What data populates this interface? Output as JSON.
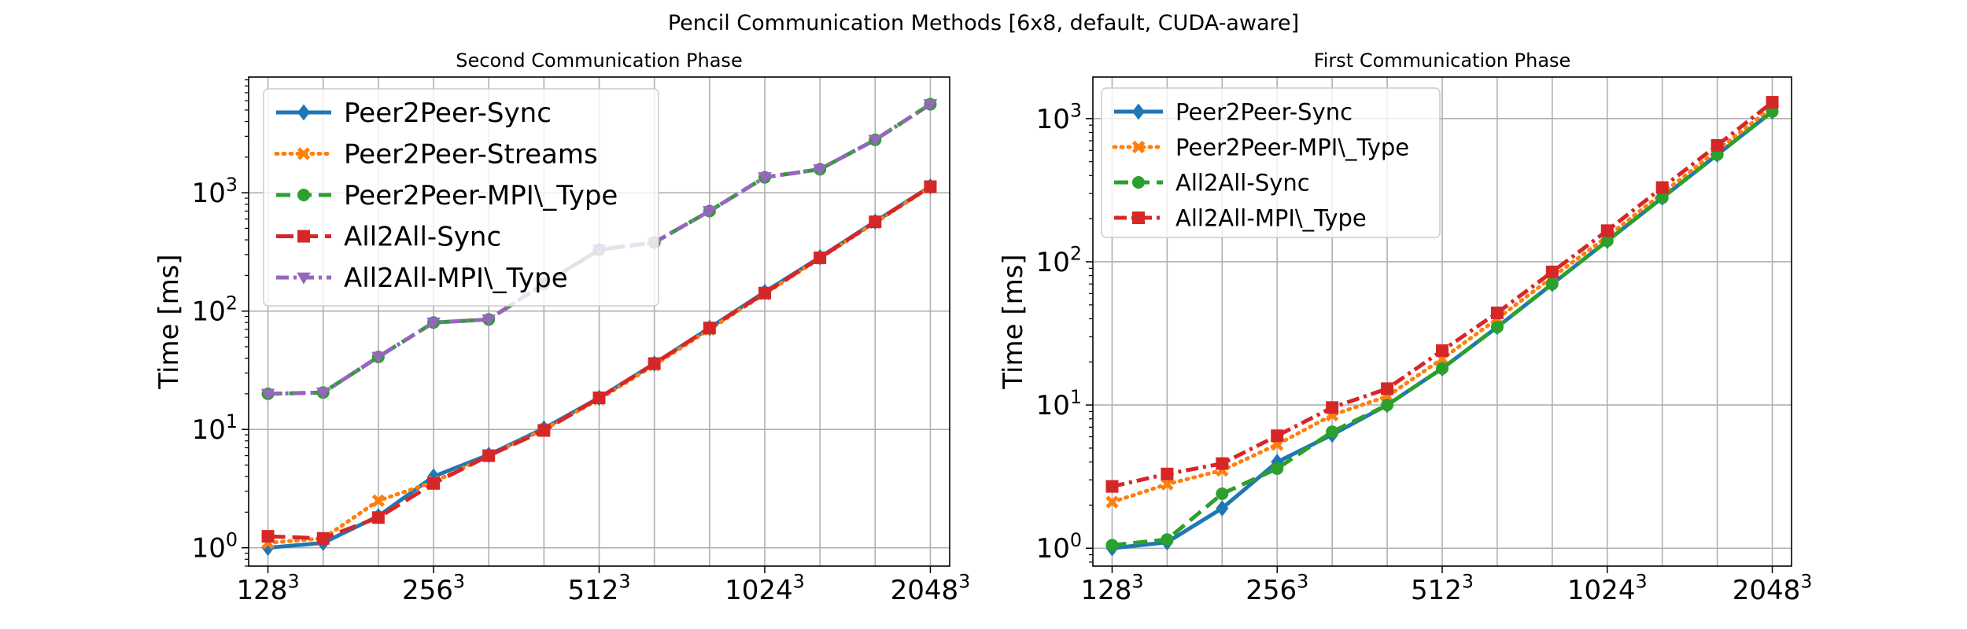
{
  "figure": {
    "suptitle": "Pencil Communication Methods [6x8, default, CUDA-aware]"
  },
  "colors": {
    "blue": "#1f77b4",
    "orange": "#ff7f0e",
    "green": "#2ca02c",
    "red": "#d62728",
    "purple": "#9467bd",
    "grid": "#b0b0b0"
  },
  "chart_data": [
    {
      "type": "line",
      "title": "Second Communication Phase",
      "ylabel": "Time [ms]",
      "xlabel": "",
      "yscale": "log",
      "grid": true,
      "legend_position": "upper-left",
      "xticks": [
        {
          "base": "128",
          "exp": "3",
          "x": 0
        },
        {
          "base": "256",
          "exp": "3",
          "x": 3
        },
        {
          "base": "512",
          "exp": "3",
          "x": 6
        },
        {
          "base": "1024",
          "exp": "3",
          "x": 9
        },
        {
          "base": "2048",
          "exp": "3",
          "x": 12
        }
      ],
      "yticks": [
        {
          "base": "10",
          "exp": "0",
          "value": 1
        },
        {
          "base": "10",
          "exp": "1",
          "value": 10
        },
        {
          "base": "10",
          "exp": "2",
          "value": 100
        },
        {
          "base": "10",
          "exp": "3",
          "value": 1000
        }
      ],
      "xlim": [
        -0.35,
        12.35
      ],
      "ylim": [
        0.7,
        9500
      ],
      "x": [
        0,
        1,
        2,
        3,
        4,
        5,
        6,
        7,
        8,
        9,
        10,
        11,
        12
      ],
      "series": [
        {
          "name": "Peer2Peer-Sync",
          "color": "#1f77b4",
          "dash": "solid",
          "marker": "diamond",
          "values": [
            1.0,
            1.1,
            1.85,
            4.0,
            6.1,
            10.2,
            18.5,
            36.0,
            72.0,
            145.0,
            285.0,
            570.0,
            1130.0
          ]
        },
        {
          "name": "Peer2Peer-Streams",
          "color": "#ff7f0e",
          "dash": "dotted",
          "marker": "x",
          "values": [
            1.1,
            1.2,
            2.5,
            3.6,
            6.0,
            10.0,
            18.0,
            35.0,
            70.0,
            140.0,
            280.0,
            560.0,
            1120.0
          ]
        },
        {
          "name": "Peer2Peer-MPI\\_Type",
          "color": "#2ca02c",
          "dash": "dashed",
          "marker": "circle",
          "values": [
            20.0,
            20.5,
            41.0,
            80.0,
            85.0,
            170.0,
            330.0,
            380.0,
            700.0,
            1350.0,
            1580.0,
            2800.0,
            5600.0
          ]
        },
        {
          "name": "All2All-Sync",
          "color": "#d62728",
          "dash": "longdash",
          "marker": "square",
          "values": [
            1.25,
            1.2,
            1.8,
            3.5,
            6.0,
            9.8,
            18.5,
            36.0,
            72.0,
            142.0,
            282.0,
            568.0,
            1125.0
          ]
        },
        {
          "name": "All2All-MPI\\_Type",
          "color": "#9467bd",
          "dash": "dashdot",
          "marker": "triangle",
          "values": [
            20.0,
            20.5,
            41.0,
            80.0,
            85.0,
            170.0,
            330.0,
            380.0,
            700.0,
            1350.0,
            1580.0,
            2800.0,
            5600.0
          ]
        }
      ]
    },
    {
      "type": "line",
      "title": "First Communication Phase",
      "ylabel": "Time [ms]",
      "xlabel": "",
      "yscale": "log",
      "grid": true,
      "legend_position": "upper-left",
      "xticks": [
        {
          "base": "128",
          "exp": "3",
          "x": 0
        },
        {
          "base": "256",
          "exp": "3",
          "x": 3
        },
        {
          "base": "512",
          "exp": "3",
          "x": 6
        },
        {
          "base": "1024",
          "exp": "3",
          "x": 9
        },
        {
          "base": "2048",
          "exp": "3",
          "x": 12
        }
      ],
      "yticks": [
        {
          "base": "10",
          "exp": "0",
          "value": 1
        },
        {
          "base": "10",
          "exp": "1",
          "value": 10
        },
        {
          "base": "10",
          "exp": "2",
          "value": 100
        },
        {
          "base": "10",
          "exp": "3",
          "value": 1000
        }
      ],
      "xlim": [
        -0.35,
        12.35
      ],
      "ylim": [
        0.75,
        1950
      ],
      "x": [
        0,
        1,
        2,
        3,
        4,
        5,
        6,
        7,
        8,
        9,
        10,
        11,
        12
      ],
      "series": [
        {
          "name": "Peer2Peer-Sync",
          "color": "#1f77b4",
          "dash": "solid",
          "marker": "diamond",
          "values": [
            1.0,
            1.1,
            1.9,
            4.0,
            6.2,
            10.0,
            18.0,
            35.0,
            70.0,
            140.0,
            280.0,
            560.0,
            1120.0
          ]
        },
        {
          "name": "Peer2Peer-MPI\\_Type",
          "color": "#ff7f0e",
          "dash": "dotted",
          "marker": "x",
          "values": [
            2.1,
            2.8,
            3.5,
            5.3,
            8.5,
            11.5,
            21.0,
            40.0,
            78.0,
            150.0,
            300.0,
            600.0,
            1200.0
          ]
        },
        {
          "name": "All2All-Sync",
          "color": "#2ca02c",
          "dash": "dashed",
          "marker": "circle",
          "values": [
            1.05,
            1.15,
            2.4,
            3.6,
            6.5,
            10.0,
            18.0,
            35.0,
            70.0,
            140.0,
            280.0,
            560.0,
            1120.0
          ]
        },
        {
          "name": "All2All-MPI\\_Type",
          "color": "#d62728",
          "dash": "dashdot",
          "marker": "square",
          "values": [
            2.7,
            3.3,
            3.9,
            6.1,
            9.6,
            13.0,
            24.0,
            44.0,
            85.0,
            165.0,
            330.0,
            650.0,
            1300.0
          ]
        }
      ]
    }
  ]
}
